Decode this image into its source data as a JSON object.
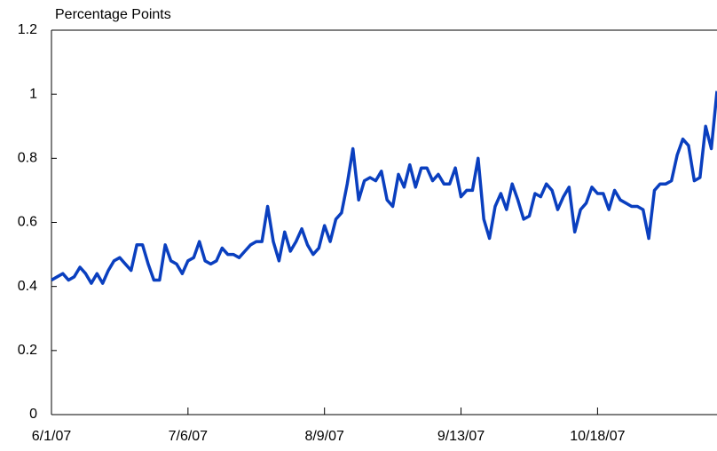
{
  "chart_data": {
    "type": "line",
    "title": "Percentage Points",
    "categories": [
      "6/1/07",
      null,
      null,
      null,
      null,
      null,
      null,
      null,
      null,
      null,
      null,
      null,
      null,
      null,
      null,
      null,
      null,
      null,
      null,
      null,
      null,
      null,
      null,
      null,
      "7/6/07",
      null,
      null,
      null,
      null,
      null,
      null,
      null,
      null,
      null,
      null,
      null,
      null,
      null,
      null,
      null,
      null,
      null,
      null,
      null,
      null,
      null,
      null,
      null,
      "8/9/07",
      null,
      null,
      null,
      null,
      null,
      null,
      null,
      null,
      null,
      null,
      null,
      null,
      null,
      null,
      null,
      null,
      null,
      null,
      null,
      null,
      null,
      null,
      null,
      "9/13/07",
      null,
      null,
      null,
      null,
      null,
      null,
      null,
      null,
      null,
      null,
      null,
      null,
      null,
      null,
      null,
      null,
      null,
      null,
      null,
      null,
      null,
      null,
      null,
      "10/18/07",
      null,
      null,
      null,
      null,
      null,
      null,
      null,
      null,
      null,
      null,
      null,
      null,
      null,
      null,
      null,
      null,
      null,
      null,
      null,
      null,
      null
    ],
    "series": [
      {
        "color": "#0a3fbf",
        "values": [
          0.42,
          0.43,
          0.44,
          0.42,
          0.43,
          0.46,
          0.44,
          0.41,
          0.44,
          0.41,
          0.45,
          0.48,
          0.49,
          0.47,
          0.45,
          0.53,
          0.53,
          0.47,
          0.42,
          0.42,
          0.53,
          0.48,
          0.47,
          0.44,
          0.48,
          0.49,
          0.54,
          0.48,
          0.47,
          0.48,
          0.52,
          0.5,
          0.5,
          0.49,
          0.51,
          0.53,
          0.54,
          0.54,
          0.65,
          0.54,
          0.48,
          0.57,
          0.51,
          0.54,
          0.58,
          0.53,
          0.5,
          0.52,
          0.59,
          0.54,
          0.61,
          0.63,
          0.72,
          0.83,
          0.67,
          0.73,
          0.74,
          0.73,
          0.76,
          0.67,
          0.65,
          0.75,
          0.71,
          0.78,
          0.71,
          0.77,
          0.77,
          0.73,
          0.75,
          0.72,
          0.72,
          0.77,
          0.68,
          0.7,
          0.7,
          0.8,
          0.61,
          0.55,
          0.65,
          0.69,
          0.64,
          0.72,
          0.67,
          0.61,
          0.62,
          0.69,
          0.68,
          0.72,
          0.7,
          0.64,
          0.68,
          0.71,
          0.57,
          0.64,
          0.66,
          0.71,
          0.69,
          0.69,
          0.64,
          0.7,
          0.67,
          0.66,
          0.65,
          0.65,
          0.64,
          0.55,
          0.7,
          0.72,
          0.72,
          0.73,
          0.81,
          0.86,
          0.84,
          0.73,
          0.74,
          0.9,
          0.83,
          1.01
        ]
      }
    ],
    "ylim": [
      0,
      1.2
    ],
    "yticks": [
      0,
      0.2,
      0.4,
      0.6,
      0.8,
      1,
      1.2
    ]
  }
}
